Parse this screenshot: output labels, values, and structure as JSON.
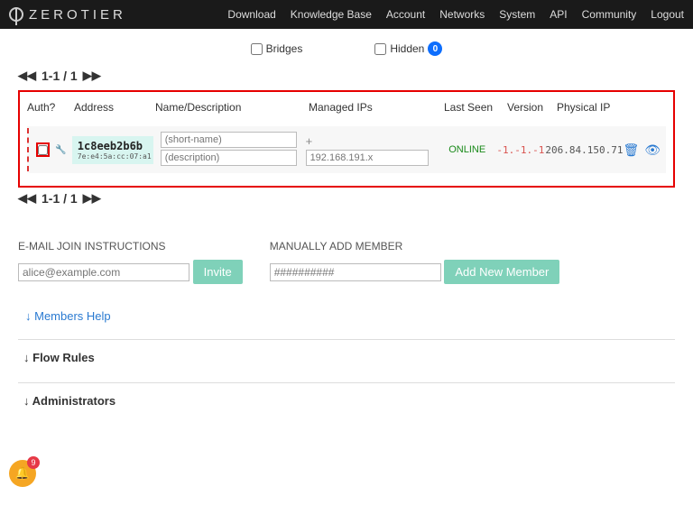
{
  "brand": "ZEROTIER",
  "nav": [
    "Download",
    "Knowledge Base",
    "Account",
    "Networks",
    "System",
    "API",
    "Community",
    "Logout"
  ],
  "filters": {
    "bridges": "Bridges",
    "hidden": "Hidden",
    "hidden_count": "0"
  },
  "pager": "1-1 / 1",
  "columns": {
    "auth": "Auth?",
    "addr": "Address",
    "name": "Name/Description",
    "ips": "Managed IPs",
    "seen": "Last Seen",
    "ver": "Version",
    "pip": "Physical IP"
  },
  "member": {
    "address": "1c8eeb2b6b",
    "mac": "7e:e4:5a:cc:07:a1",
    "short_name_ph": "(short-name)",
    "desc_ph": "(description)",
    "ip_ph": "192.168.191.x",
    "seen": "ONLINE",
    "version": "-1.-1.-1",
    "physical_ip": "206.84.150.71"
  },
  "invite": {
    "label": "E-MAIL JOIN INSTRUCTIONS",
    "ph": "alice@example.com",
    "btn": "Invite"
  },
  "add": {
    "label": "MANUALLY ADD MEMBER",
    "ph": "##########",
    "btn": "Add New Member"
  },
  "help": "Members Help",
  "sections": {
    "flow": "Flow Rules",
    "admins": "Administrators"
  },
  "notif_count": "9"
}
